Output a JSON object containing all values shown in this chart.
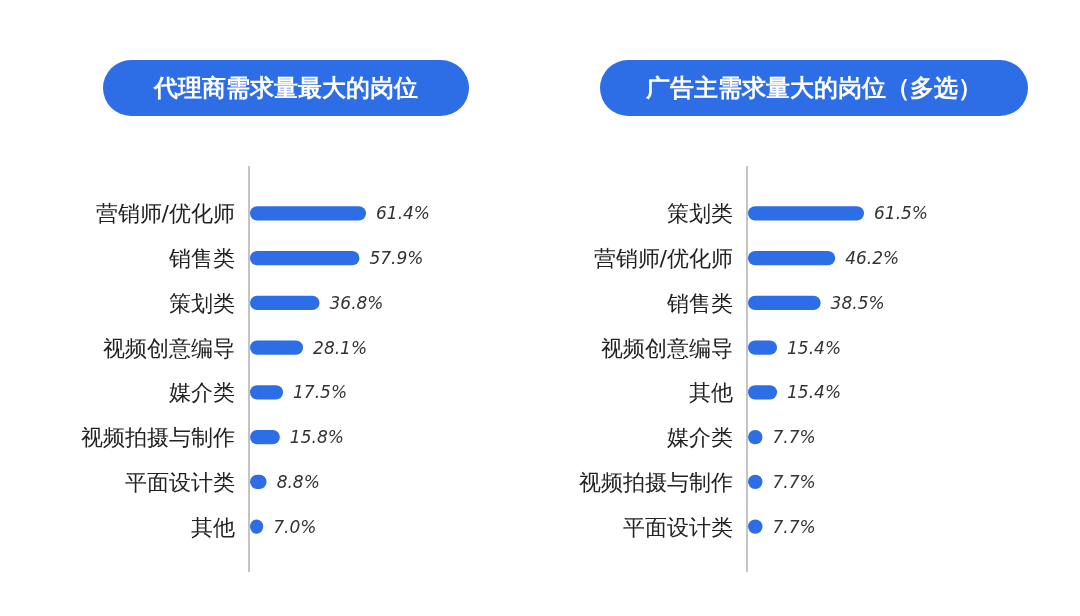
{
  "chart_data": [
    {
      "type": "bar",
      "orientation": "horizontal",
      "title": "代理商需求量最大的岗位",
      "categories": [
        "营销师/优化师",
        "销售类",
        "策划类",
        "视频创意编导",
        "媒介类",
        "视频拍摄与制作",
        "平面设计类",
        "其他"
      ],
      "values": [
        61.4,
        57.9,
        36.8,
        28.1,
        17.5,
        15.8,
        8.8,
        7.0
      ],
      "value_labels": [
        "61.4%",
        "57.9%",
        "36.8%",
        "28.1%",
        "17.5%",
        "15.8%",
        "8.8%",
        "7.0%"
      ],
      "color": "#2d6de6"
    },
    {
      "type": "bar",
      "orientation": "horizontal",
      "title": "广告主需求量大的岗位（多选）",
      "categories": [
        "策划类",
        "营销师/优化师",
        "销售类",
        "视频创意编导",
        "其他",
        "媒介类",
        "视频拍摄与制作",
        "平面设计类"
      ],
      "values": [
        61.5,
        46.2,
        38.5,
        15.4,
        15.4,
        7.7,
        7.7,
        7.7
      ],
      "value_labels": [
        "61.5%",
        "46.2%",
        "38.5%",
        "15.4%",
        "15.4%",
        "7.7%",
        "7.7%",
        "7.7%"
      ],
      "color": "#2d6de6"
    }
  ]
}
